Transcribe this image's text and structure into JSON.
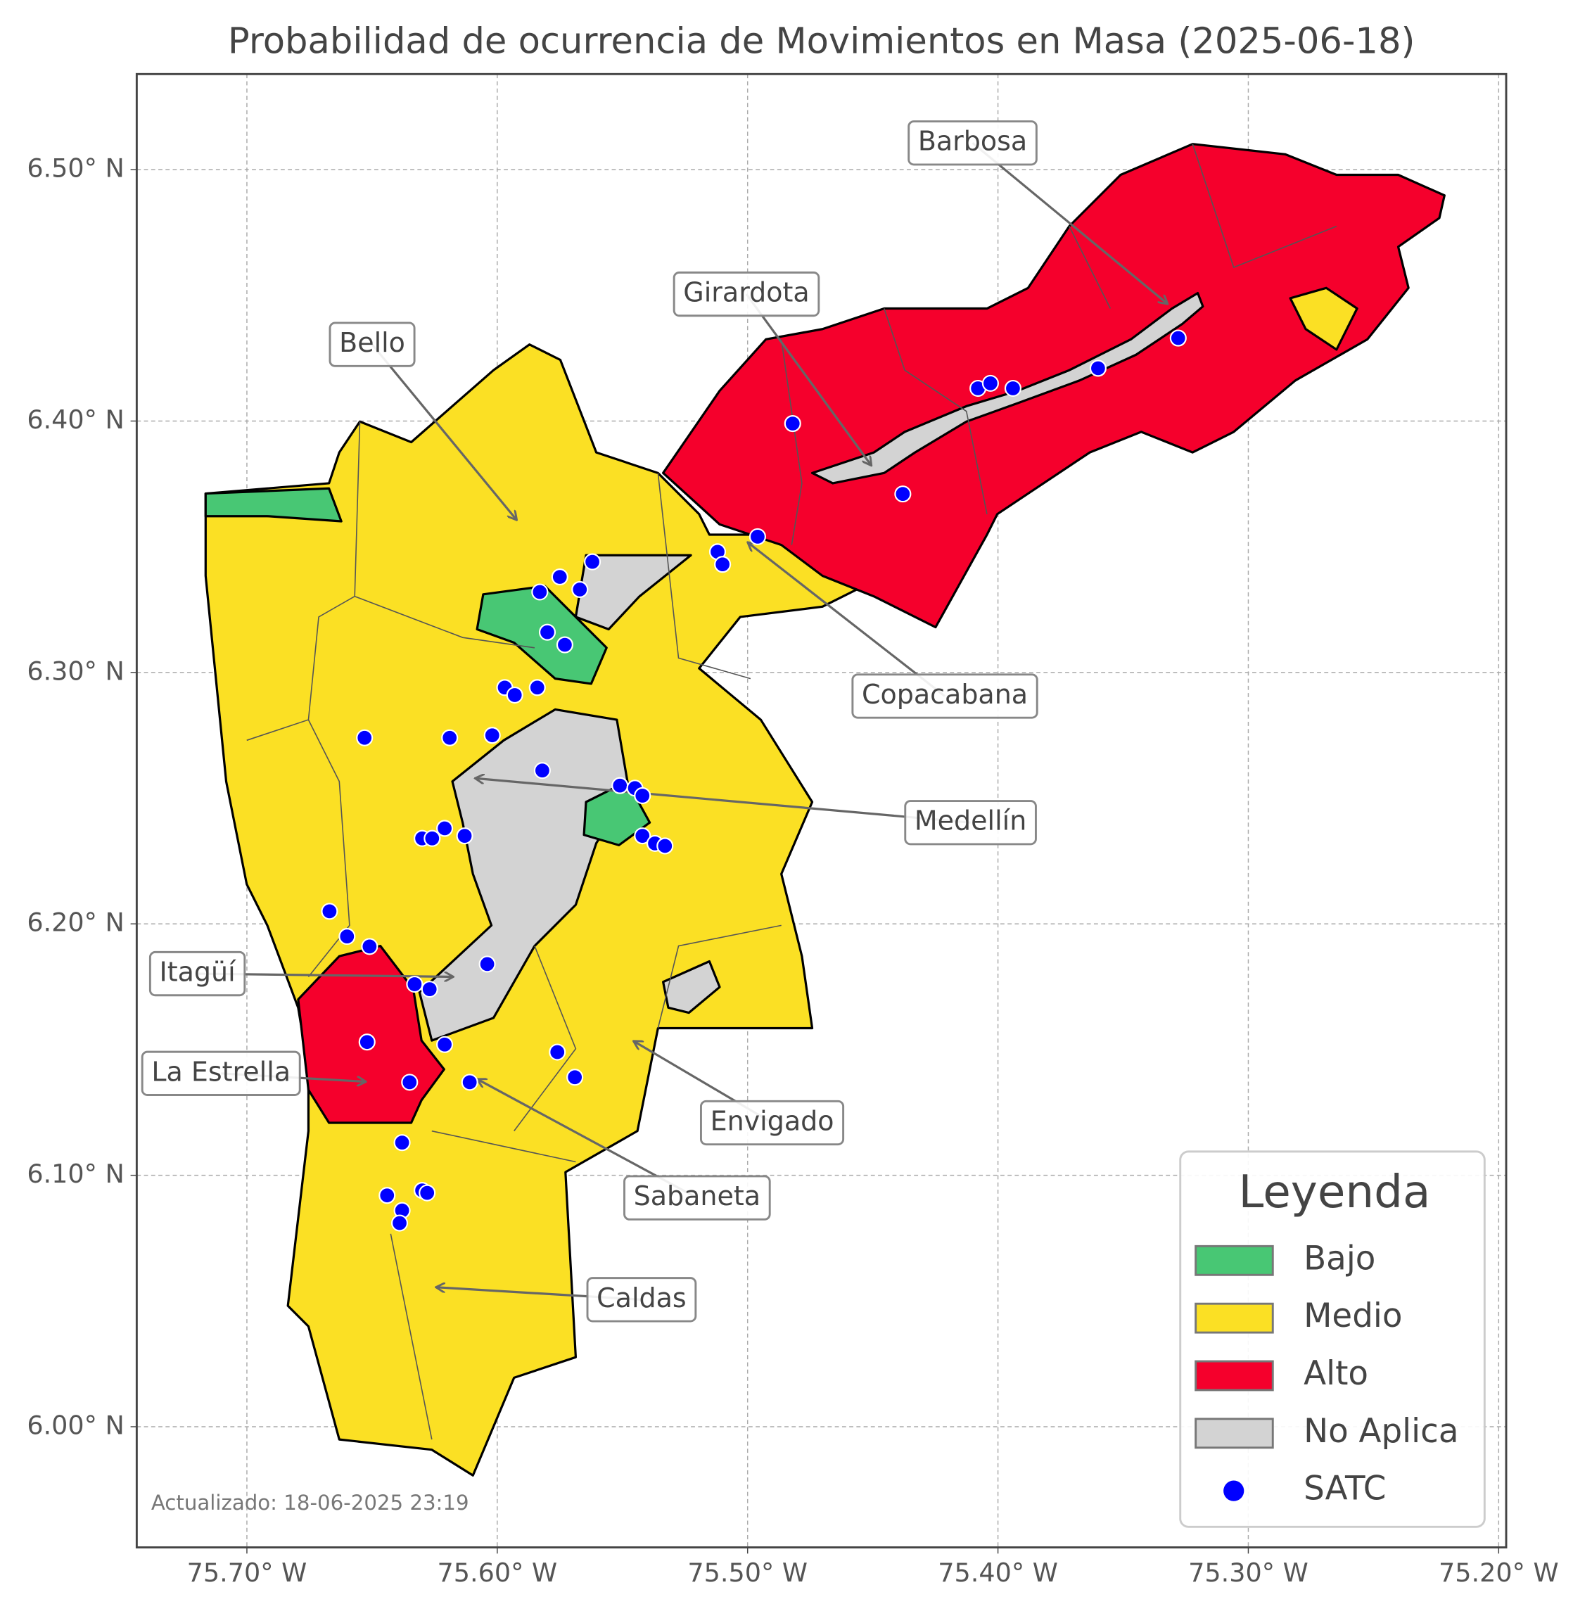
{
  "title": "Probabilidad de ocurrencia de Movimientos en Masa (2025-06-18)",
  "footnote": "Actualizado: 18-06-2025 23:19",
  "axes": {
    "xlim": [
      -75.744,
      -75.197
    ],
    "ylim": [
      5.952,
      6.538
    ],
    "grid": true,
    "xticks": [
      {
        "value": -75.7,
        "label": "75.70° W"
      },
      {
        "value": -75.6,
        "label": "75.60° W"
      },
      {
        "value": -75.5,
        "label": "75.50° W"
      },
      {
        "value": -75.4,
        "label": "75.40° W"
      },
      {
        "value": -75.3,
        "label": "75.30° W"
      },
      {
        "value": -75.2,
        "label": "75.20° W"
      }
    ],
    "yticks": [
      {
        "value": 6.0,
        "label": "6.00° N"
      },
      {
        "value": 6.1,
        "label": "6.10° N"
      },
      {
        "value": 6.2,
        "label": "6.20° N"
      },
      {
        "value": 6.3,
        "label": "6.30° N"
      },
      {
        "value": 6.4,
        "label": "6.40° N"
      },
      {
        "value": 6.5,
        "label": "6.50° N"
      }
    ]
  },
  "legend": {
    "title": "Leyenda",
    "items": [
      {
        "label": "Bajo",
        "color": "#48c774"
      },
      {
        "label": "Medio",
        "color": "#fbe024"
      },
      {
        "label": "Alto",
        "color": "#f5002c"
      },
      {
        "label": "No Aplica",
        "color": "#d3d3d3"
      },
      {
        "label": "SATC",
        "color": "#0000ff",
        "marker": "point"
      }
    ]
  },
  "annotations": [
    "Barbosa",
    "Girardota",
    "Bello",
    "Copacabana",
    "Medellín",
    "Itagüí",
    "La Estrella",
    "Envigado",
    "Sabaneta",
    "Caldas"
  ],
  "points": [
    {
      "lon": -75.482,
      "lat": 6.399
    },
    {
      "lon": -75.438,
      "lat": 6.371
    },
    {
      "lon": -75.408,
      "lat": 6.413
    },
    {
      "lon": -75.403,
      "lat": 6.415
    },
    {
      "lon": -75.394,
      "lat": 6.413
    },
    {
      "lon": -75.36,
      "lat": 6.421
    },
    {
      "lon": -75.328,
      "lat": 6.433
    },
    {
      "lon": -75.496,
      "lat": 6.354
    },
    {
      "lon": -75.512,
      "lat": 6.348
    },
    {
      "lon": -75.51,
      "lat": 6.343
    },
    {
      "lon": -75.562,
      "lat": 6.344
    },
    {
      "lon": -75.575,
      "lat": 6.338
    },
    {
      "lon": -75.567,
      "lat": 6.333
    },
    {
      "lon": -75.583,
      "lat": 6.332
    },
    {
      "lon": -75.58,
      "lat": 6.316
    },
    {
      "lon": -75.573,
      "lat": 6.311
    },
    {
      "lon": -75.597,
      "lat": 6.294
    },
    {
      "lon": -75.593,
      "lat": 6.291
    },
    {
      "lon": -75.584,
      "lat": 6.294
    },
    {
      "lon": -75.653,
      "lat": 6.274
    },
    {
      "lon": -75.619,
      "lat": 6.274
    },
    {
      "lon": -75.602,
      "lat": 6.275
    },
    {
      "lon": -75.582,
      "lat": 6.261
    },
    {
      "lon": -75.551,
      "lat": 6.255
    },
    {
      "lon": -75.545,
      "lat": 6.254
    },
    {
      "lon": -75.542,
      "lat": 6.251
    },
    {
      "lon": -75.542,
      "lat": 6.235
    },
    {
      "lon": -75.537,
      "lat": 6.232
    },
    {
      "lon": -75.533,
      "lat": 6.231
    },
    {
      "lon": -75.621,
      "lat": 6.238
    },
    {
      "lon": -75.63,
      "lat": 6.234
    },
    {
      "lon": -75.626,
      "lat": 6.234
    },
    {
      "lon": -75.613,
      "lat": 6.235
    },
    {
      "lon": -75.667,
      "lat": 6.205
    },
    {
      "lon": -75.66,
      "lat": 6.195
    },
    {
      "lon": -75.651,
      "lat": 6.191
    },
    {
      "lon": -75.604,
      "lat": 6.184
    },
    {
      "lon": -75.633,
      "lat": 6.176
    },
    {
      "lon": -75.627,
      "lat": 6.174
    },
    {
      "lon": -75.652,
      "lat": 6.153
    },
    {
      "lon": -75.621,
      "lat": 6.152
    },
    {
      "lon": -75.576,
      "lat": 6.149
    },
    {
      "lon": -75.635,
      "lat": 6.137
    },
    {
      "lon": -75.611,
      "lat": 6.137
    },
    {
      "lon": -75.569,
      "lat": 6.139
    },
    {
      "lon": -75.638,
      "lat": 6.113
    },
    {
      "lon": -75.644,
      "lat": 6.092
    },
    {
      "lon": -75.63,
      "lat": 6.094
    },
    {
      "lon": -75.628,
      "lat": 6.093
    },
    {
      "lon": -75.638,
      "lat": 6.086
    },
    {
      "lon": -75.639,
      "lat": 6.081
    }
  ]
}
